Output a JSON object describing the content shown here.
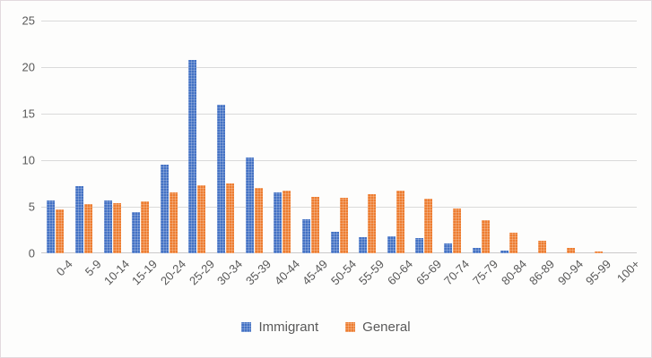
{
  "chart_data": {
    "type": "bar",
    "title": "",
    "xlabel": "",
    "ylabel": "",
    "ylim": [
      0,
      25
    ],
    "yticks": [
      0,
      5,
      10,
      15,
      20,
      25
    ],
    "grid": true,
    "legend_position": "bottom",
    "categories": [
      "0-4",
      "5-9",
      "10-14",
      "15-19",
      "20-24",
      "25-29",
      "30-34",
      "35-39",
      "40-44",
      "45-49",
      "50-54",
      "55-59",
      "60-64",
      "65-69",
      "70-74",
      "75-79",
      "80-84",
      "86-89",
      "90-94",
      "95-99",
      "100+"
    ],
    "series": [
      {
        "name": "Immigrant",
        "color": "#4472C4",
        "values": [
          5.7,
          7.2,
          5.7,
          4.4,
          9.5,
          20.8,
          16.0,
          10.3,
          6.5,
          3.7,
          2.3,
          1.7,
          1.8,
          1.6,
          1.1,
          0.6,
          0.3,
          0,
          0,
          0,
          0
        ]
      },
      {
        "name": "General",
        "color": "#ED7D31",
        "values": [
          4.7,
          5.3,
          5.4,
          5.6,
          6.5,
          7.3,
          7.5,
          7.0,
          6.7,
          6.1,
          6.0,
          6.3,
          6.7,
          5.9,
          4.8,
          3.6,
          2.2,
          1.3,
          0.6,
          0.2,
          0
        ]
      }
    ]
  }
}
